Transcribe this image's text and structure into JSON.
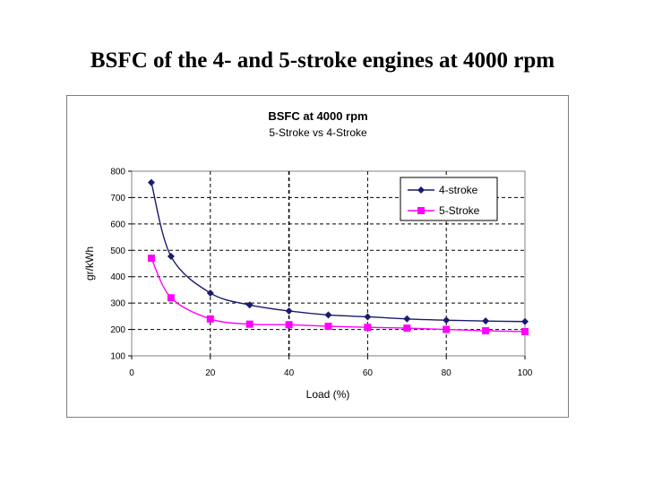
{
  "slide": {
    "title": "BSFC of the 4- and 5-stroke engines at 4000 rpm"
  },
  "chart_data": {
    "type": "line",
    "title": "BSFC at 4000 rpm",
    "subtitle": "5-Stroke vs 4-Stroke",
    "xlabel": "Load (%)",
    "ylabel": "gr/kWh",
    "xlim": [
      0,
      100
    ],
    "ylim": [
      100,
      800
    ],
    "xticks": [
      0,
      20,
      40,
      60,
      80,
      100
    ],
    "yticks": [
      100,
      200,
      300,
      400,
      500,
      600,
      700,
      800
    ],
    "grid": true,
    "legend_position": "top-right",
    "series": [
      {
        "name": "4-stroke",
        "color": "#1a1a6e",
        "marker": "diamond",
        "x": [
          5,
          10,
          20,
          30,
          40,
          50,
          60,
          70,
          80,
          90,
          100
        ],
        "values": [
          757,
          477,
          338,
          293,
          270,
          255,
          248,
          240,
          235,
          232,
          230
        ]
      },
      {
        "name": "5-Stroke",
        "color": "#ff00ff",
        "marker": "square",
        "x": [
          5,
          10,
          20,
          30,
          40,
          50,
          60,
          70,
          80,
          90,
          100
        ],
        "values": [
          470,
          320,
          240,
          220,
          218,
          212,
          208,
          205,
          200,
          195,
          192
        ]
      }
    ]
  }
}
